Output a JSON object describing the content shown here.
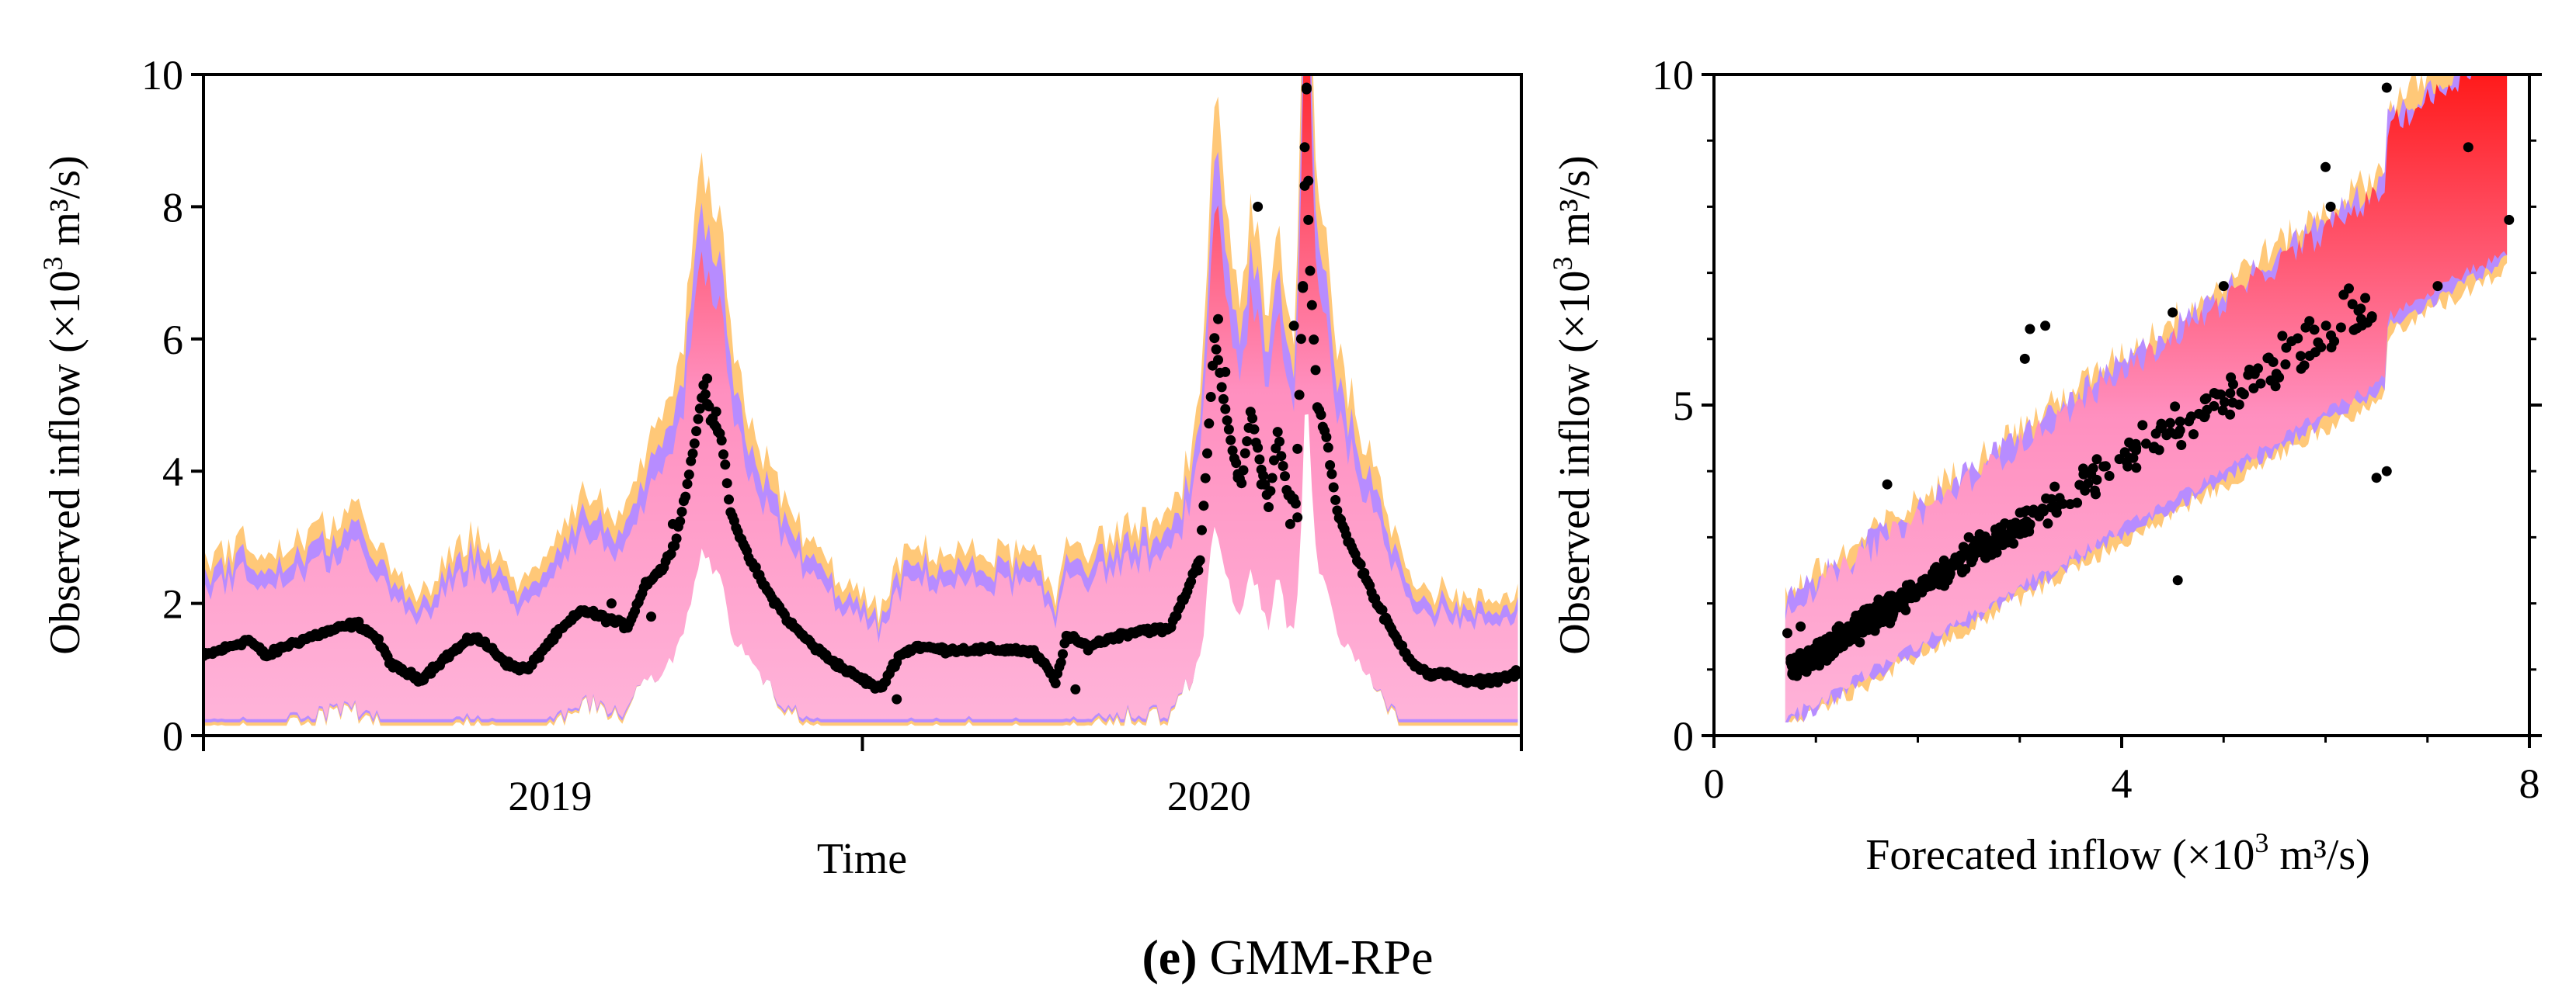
{
  "caption": {
    "letter": "(e)",
    "text": " GMM-RPe"
  },
  "colors": {
    "band_outer": "#ffc878",
    "band_mid": "#b78cff",
    "band_inner_low": "#ffb3d9",
    "band_inner_high": "#ff1a1a",
    "points": "#000000",
    "axes": "#000000"
  },
  "chart_data": [
    {
      "type": "scatter",
      "id": "time_series",
      "title": "",
      "xlabel": "Time",
      "ylabel": "Observed inflow (×10³ m³/s)",
      "ylabel_parts": {
        "pre": "Observed inflow (×10",
        "sup": "3",
        "post": " m³/s)"
      },
      "xlim": [
        0,
        730
      ],
      "ylim": [
        0,
        10
      ],
      "yticks": [
        0,
        2,
        4,
        6,
        8,
        10
      ],
      "ytick_labels": [
        "0",
        "2",
        "4",
        "6",
        "8",
        "10"
      ],
      "xticks_major": [
        0,
        365,
        730
      ],
      "xtick_labels": [
        {
          "label": "2019",
          "at": 192
        },
        {
          "label": "2020",
          "at": 557
        }
      ],
      "anchors": [
        [
          0,
          1.2
        ],
        [
          10,
          1.3
        ],
        [
          25,
          1.45
        ],
        [
          35,
          1.2
        ],
        [
          45,
          1.35
        ],
        [
          60,
          1.5
        ],
        [
          72,
          1.6
        ],
        [
          85,
          1.7
        ],
        [
          95,
          1.5
        ],
        [
          105,
          1.05
        ],
        [
          120,
          0.85
        ],
        [
          135,
          1.2
        ],
        [
          150,
          1.5
        ],
        [
          160,
          1.3
        ],
        [
          170,
          1.05
        ],
        [
          180,
          1.0
        ],
        [
          188,
          1.3
        ],
        [
          198,
          1.6
        ],
        [
          210,
          1.9
        ],
        [
          225,
          1.75
        ],
        [
          235,
          1.65
        ],
        [
          245,
          2.3
        ],
        [
          255,
          2.55
        ],
        [
          262,
          3.0
        ],
        [
          268,
          3.8
        ],
        [
          273,
          4.6
        ],
        [
          277,
          5.3
        ],
        [
          281,
          4.8
        ],
        [
          287,
          4.5
        ],
        [
          292,
          3.4
        ],
        [
          300,
          2.8
        ],
        [
          312,
          2.2
        ],
        [
          325,
          1.7
        ],
        [
          340,
          1.3
        ],
        [
          355,
          1.0
        ],
        [
          365,
          0.85
        ],
        [
          375,
          0.7
        ],
        [
          385,
          1.2
        ],
        [
          395,
          1.35
        ],
        [
          410,
          1.3
        ],
        [
          430,
          1.3
        ],
        [
          450,
          1.3
        ],
        [
          460,
          1.25
        ],
        [
          468,
          1.0
        ],
        [
          472,
          0.8
        ],
        [
          478,
          1.5
        ],
        [
          490,
          1.35
        ],
        [
          505,
          1.5
        ],
        [
          520,
          1.6
        ],
        [
          535,
          1.6
        ],
        [
          545,
          2.2
        ],
        [
          552,
          2.7
        ],
        [
          556,
          4.3
        ],
        [
          560,
          6.0
        ],
        [
          565,
          5.1
        ],
        [
          570,
          4.3
        ],
        [
          575,
          3.8
        ],
        [
          580,
          4.9
        ],
        [
          585,
          4.2
        ],
        [
          590,
          3.5
        ],
        [
          595,
          4.6
        ],
        [
          600,
          3.7
        ],
        [
          605,
          3.5
        ],
        [
          609,
          6.8
        ],
        [
          611,
          9.8
        ],
        [
          613,
          7.0
        ],
        [
          617,
          5.0
        ],
        [
          622,
          4.5
        ],
        [
          628,
          3.4
        ],
        [
          635,
          2.9
        ],
        [
          642,
          2.5
        ],
        [
          650,
          2.0
        ],
        [
          660,
          1.5
        ],
        [
          670,
          1.1
        ],
        [
          680,
          0.9
        ],
        [
          690,
          0.95
        ],
        [
          700,
          0.8
        ],
        [
          715,
          0.85
        ],
        [
          730,
          0.95
        ]
      ],
      "outliers": [
        [
          562,
          6.3
        ],
        [
          566,
          5.5
        ],
        [
          584,
          8.0
        ],
        [
          604,
          6.2
        ],
        [
          610,
          8.9
        ],
        [
          611,
          9.8
        ],
        [
          612,
          7.8
        ],
        [
          609,
          6.8
        ],
        [
          606,
          3.3
        ],
        [
          602,
          3.2
        ],
        [
          573,
          3.9
        ],
        [
          586,
          3.8
        ],
        [
          279,
          5.4
        ],
        [
          284,
          4.9
        ],
        [
          260,
          3.2
        ],
        [
          248,
          1.8
        ],
        [
          384,
          0.55
        ],
        [
          483,
          0.7
        ],
        [
          551,
          2.5
        ],
        [
          226,
          2.0
        ]
      ],
      "point_count": 730
    },
    {
      "type": "scatter",
      "id": "forecast_vs_observed",
      "title": "",
      "xlabel": "Forecated inflow (×10³ m³/s)",
      "xlabel_parts": {
        "pre": "Forecated inflow (×10",
        "sup": "3",
        "post": " m³/s)"
      },
      "ylabel": "Observed inflow (×10³ m³/s)",
      "ylabel_parts": {
        "pre": "Observed inflow (×10",
        "sup": "3",
        "post": " m³/s)"
      },
      "xlim": [
        0,
        8
      ],
      "ylim": [
        0,
        10
      ],
      "xticks": [
        0,
        4,
        8
      ],
      "xtick_labels": [
        "0",
        "4",
        "8"
      ],
      "yticks": [
        0,
        5,
        10
      ],
      "ytick_labels": [
        "0",
        "5",
        "10"
      ],
      "xticks_minor": [
        1,
        2,
        3,
        5,
        6,
        7
      ],
      "yticks_minor": [
        1,
        2,
        3,
        4,
        6,
        7,
        8,
        9
      ],
      "band_x_range": [
        0.7,
        7.8
      ],
      "outliers": [
        [
          6.6,
          9.8
        ],
        [
          7.4,
          8.9
        ],
        [
          7.8,
          7.8
        ],
        [
          6.0,
          8.6
        ],
        [
          6.05,
          8.0
        ],
        [
          3.05,
          5.7
        ],
        [
          3.1,
          6.15
        ],
        [
          3.25,
          6.2
        ],
        [
          4.5,
          6.4
        ],
        [
          5.0,
          6.8
        ],
        [
          1.7,
          3.8
        ],
        [
          6.5,
          3.9
        ],
        [
          6.6,
          4.0
        ],
        [
          4.55,
          2.35
        ],
        [
          7.1,
          6.8
        ],
        [
          5.9,
          5.8
        ],
        [
          6.35,
          6.3
        ],
        [
          2.5,
          3.0
        ],
        [
          0.72,
          1.55
        ],
        [
          0.85,
          1.65
        ]
      ],
      "point_count": 700
    }
  ]
}
